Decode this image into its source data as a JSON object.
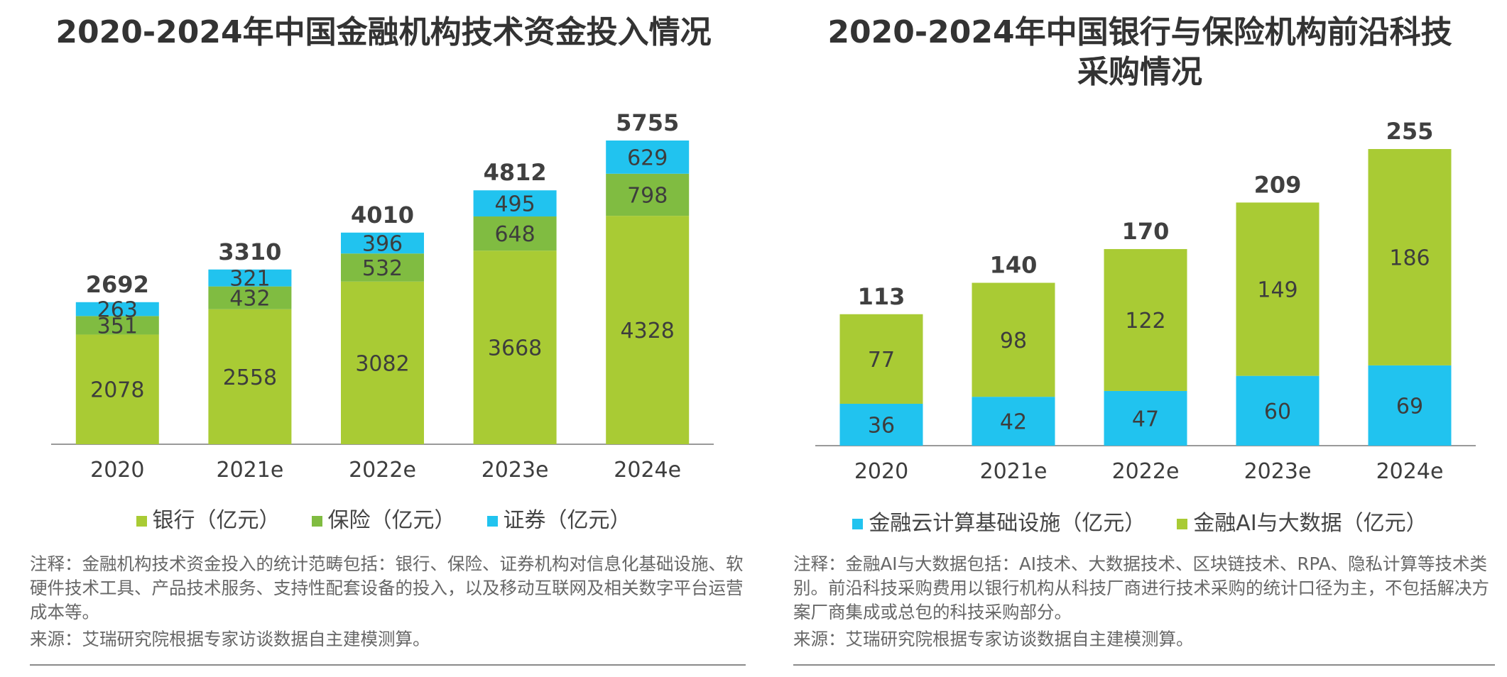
{
  "chart_data": [
    {
      "type": "bar",
      "stacked": true,
      "title": "2020-2024年中国金融机构技术资金投入情况",
      "categories": [
        "2020",
        "2021e",
        "2022e",
        "2023e",
        "2024e"
      ],
      "series": [
        {
          "name": "银行（亿元）",
          "color": "#a9cb34",
          "values": [
            2078,
            2558,
            3082,
            3668,
            4328
          ]
        },
        {
          "name": "保险（亿元）",
          "color": "#80bc41",
          "values": [
            351,
            432,
            532,
            648,
            798
          ]
        },
        {
          "name": "证券（亿元）",
          "color": "#21c3ef",
          "values": [
            263,
            321,
            396,
            495,
            629
          ]
        }
      ],
      "totals": [
        2692,
        3310,
        4010,
        4812,
        5755
      ],
      "legend": [
        {
          "label": "银行（亿元）",
          "color": "#a9cb34"
        },
        {
          "label": "保险（亿元）",
          "color": "#80bc41"
        },
        {
          "label": "证券（亿元）",
          "color": "#21c3ef"
        }
      ],
      "legend_position": "bottom",
      "grid": false,
      "ylim": [
        0,
        5755
      ],
      "xlabel": "",
      "ylabel": ""
    },
    {
      "type": "bar",
      "stacked": true,
      "title": "2020-2024年中国银行与保险机构前沿科技采购情况",
      "title_lines": [
        "2020-2024年中国银行与保险机构前沿科技",
        "采购情况"
      ],
      "categories": [
        "2020",
        "2021e",
        "2022e",
        "2023e",
        "2024e"
      ],
      "series": [
        {
          "name": "金融云计算基础设施（亿元）",
          "color": "#21c3ef",
          "values": [
            36,
            42,
            47,
            60,
            69
          ]
        },
        {
          "name": "金融AI与大数据（亿元）",
          "color": "#a9cb34",
          "values": [
            77,
            98,
            122,
            149,
            186
          ]
        }
      ],
      "totals": [
        113,
        140,
        170,
        209,
        255
      ],
      "legend": [
        {
          "label": "金融云计算基础设施（亿元）",
          "color": "#21c3ef"
        },
        {
          "label": "金融AI与大数据（亿元）",
          "color": "#a9cb34"
        }
      ],
      "legend_position": "bottom",
      "grid": false,
      "ylim": [
        0,
        255
      ],
      "xlabel": "",
      "ylabel": ""
    }
  ],
  "notes": {
    "left": {
      "note": "注释：金融机构技术资金投入的统计范畴包括：银行、保险、证券机构对信息化基础设施、软硬件技术工具、产品技术服务、支持性配套设备的投入，以及移动互联网及相关数字平台运营成本等。",
      "source": "来源：艾瑞研究院根据专家访谈数据自主建模测算。"
    },
    "right": {
      "note": "注释：金融AI与大数据包括：AI技术、大数据技术、区块链技术、RPA、隐私计算等技术类别。前沿科技采购费用以银行机构从科技厂商进行技术采购的统计口径为主，不包括解决方案厂商集成或总包的科技采购部分。",
      "source": "来源：艾瑞研究院根据专家访谈数据自主建模测算。"
    }
  }
}
